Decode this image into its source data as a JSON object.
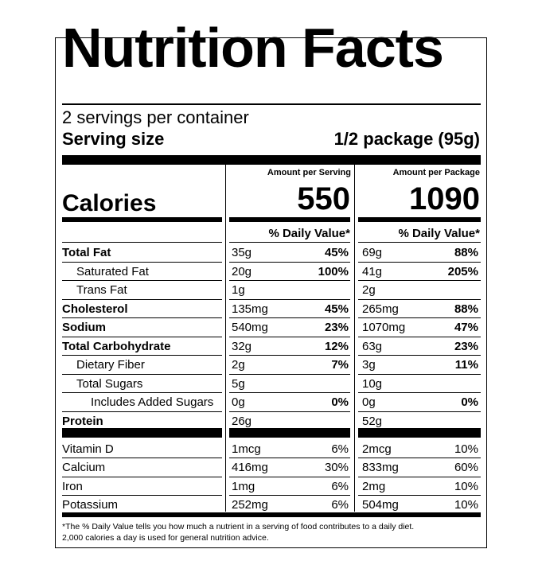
{
  "title": "Nutrition Facts",
  "servings_per_container": "2 servings per container",
  "serving_size_label": "Serving size",
  "serving_size_value": "1/2 package (95g)",
  "per_serving_header": "Amount per Serving",
  "per_package_header": "Amount per Package",
  "calories_label": "Calories",
  "calories_serving": "550",
  "calories_package": "1090",
  "dv_header": "% Daily Value*",
  "nutrients": [
    {
      "name": "Total Fat",
      "s_amt": "35g",
      "s_dv": "45%",
      "p_amt": "69g",
      "p_dv": "88%"
    },
    {
      "name": "Saturated Fat",
      "s_amt": "20g",
      "s_dv": "100%",
      "p_amt": "41g",
      "p_dv": "205%"
    },
    {
      "name": "Trans Fat",
      "s_amt": "1g",
      "s_dv": "",
      "p_amt": "2g",
      "p_dv": ""
    },
    {
      "name": "Cholesterol",
      "s_amt": "135mg",
      "s_dv": "45%",
      "p_amt": "265mg",
      "p_dv": "88%"
    },
    {
      "name": "Sodium",
      "s_amt": "540mg",
      "s_dv": "23%",
      "p_amt": "1070mg",
      "p_dv": "47%"
    },
    {
      "name": "Total Carbohydrate",
      "s_amt": "32g",
      "s_dv": "12%",
      "p_amt": "63g",
      "p_dv": "23%"
    },
    {
      "name": "Dietary Fiber",
      "s_amt": "2g",
      "s_dv": "7%",
      "p_amt": "3g",
      "p_dv": "11%"
    },
    {
      "name": "Total Sugars",
      "s_amt": "5g",
      "s_dv": "",
      "p_amt": "10g",
      "p_dv": ""
    },
    {
      "name": "Includes Added Sugars",
      "s_amt": "0g",
      "s_dv": "0%",
      "p_amt": "0g",
      "p_dv": "0%"
    },
    {
      "name": "Protein",
      "s_amt": "26g",
      "s_dv": "",
      "p_amt": "52g",
      "p_dv": ""
    }
  ],
  "vitamins": [
    {
      "name": "Vitamin D",
      "s_amt": "1mcg",
      "s_dv": "6%",
      "p_amt": "2mcg",
      "p_dv": "10%"
    },
    {
      "name": "Calcium",
      "s_amt": "416mg",
      "s_dv": "30%",
      "p_amt": "833mg",
      "p_dv": "60%"
    },
    {
      "name": "Iron",
      "s_amt": "1mg",
      "s_dv": "6%",
      "p_amt": "2mg",
      "p_dv": "10%"
    },
    {
      "name": "Potassium",
      "s_amt": "252mg",
      "s_dv": "6%",
      "p_amt": "504mg",
      "p_dv": "10%"
    }
  ],
  "footnote_line1": "*The % Daily Value tells you how much a nutrient in a serving of food contributes to a daily diet.",
  "footnote_line2": "2,000 calories a day is used for general nutrition advice."
}
